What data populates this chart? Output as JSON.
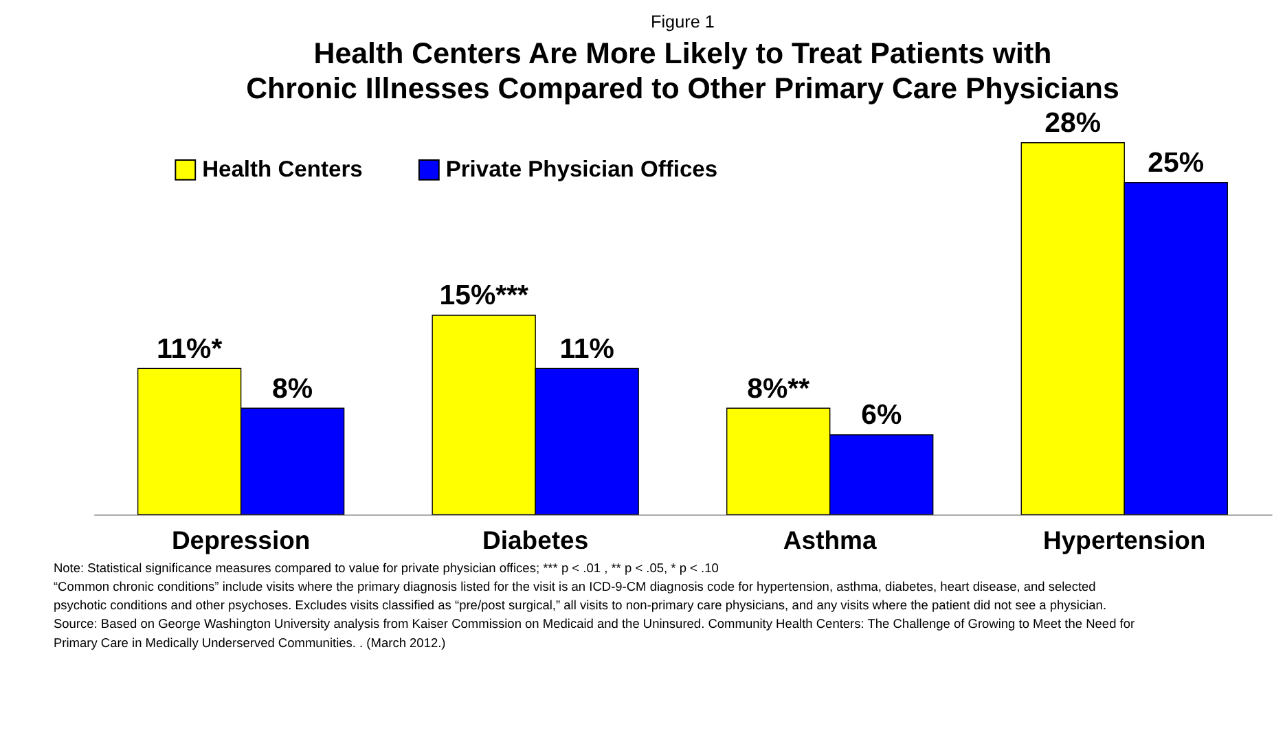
{
  "chart_data": {
    "type": "bar",
    "subtitle": "Figure 1",
    "title": "Health Centers Are More Likely to Treat Patients with Chronic Illnesses Compared to Other Primary Care Physicians",
    "categories": [
      "Depression",
      "Diabetes",
      "Asthma",
      "Hypertension"
    ],
    "series": [
      {
        "name": "Health Centers",
        "color": "#ffff00",
        "values": [
          11,
          15,
          8,
          28
        ],
        "value_labels": [
          "11%*",
          "15%***",
          "8%**",
          "28%"
        ]
      },
      {
        "name": "Private Physician Offices",
        "color": "#0000ff",
        "values": [
          8,
          11,
          6,
          25
        ],
        "value_labels": [
          "8%",
          "11%",
          "6%",
          "25%"
        ]
      }
    ],
    "legend": "top left",
    "grid": false,
    "annotations": [
      "Note: Statistical significance measures compared to value for private physician offices; *** p < .01 , ** p < .05, * p < .10",
      "“Common chronic conditions” include visits where the primary  diagnosis listed for the visit is an ICD-9-CM diagnosis code for hypertension,  asthma, diabetes, heart disease, and selected",
      "psychotic conditions and other psychoses.  Excludes visits classified as “pre/post surgical,” all visits to non-primary care physicians, and any visits where the patient did not see a physician.",
      "Source: Based on George Washington  University analysis from Kaiser Commission on Medicaid and the Uninsured. Community  Health Centers: The Challenge of Growing to Meet the Need for",
      "Primary Care in Medically Underserved  Communities. . (March 2012.)"
    ]
  }
}
